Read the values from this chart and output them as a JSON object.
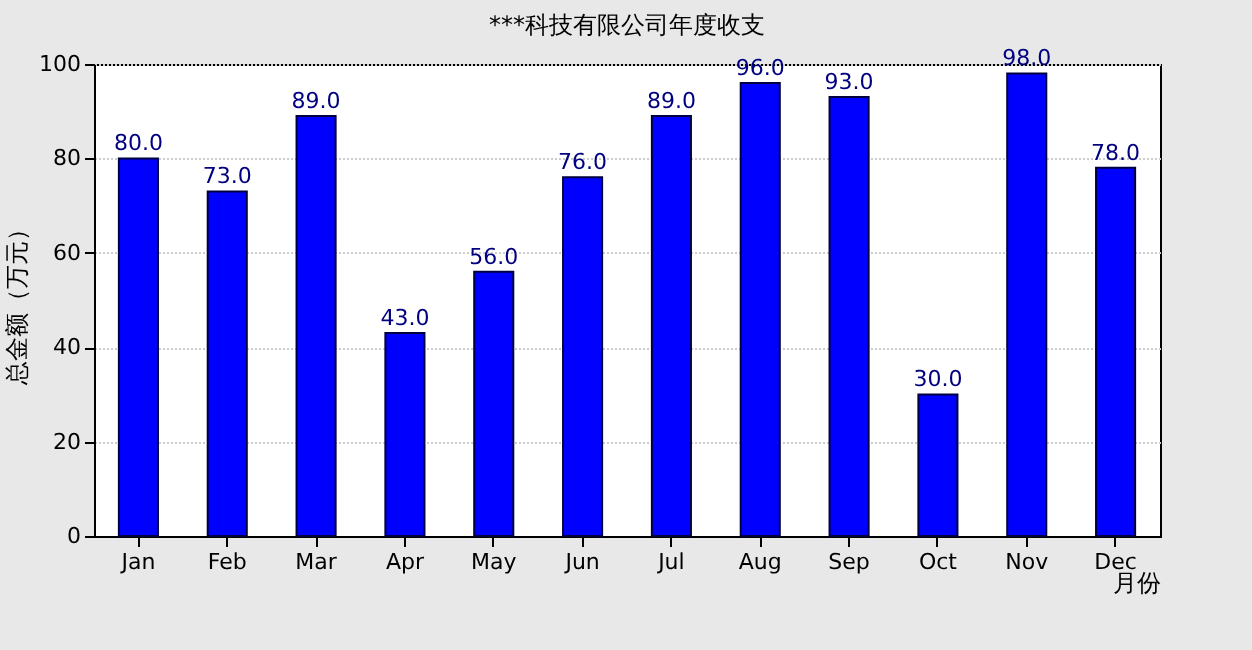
{
  "chart_data": {
    "type": "bar",
    "title": "***科技有限公司年度收支",
    "xlabel": "月份",
    "ylabel": "总金额（万元）",
    "categories": [
      "Jan",
      "Feb",
      "Mar",
      "Apr",
      "May",
      "Jun",
      "Jul",
      "Aug",
      "Sep",
      "Oct",
      "Nov",
      "Dec"
    ],
    "values": [
      80,
      73,
      89,
      43,
      56,
      76,
      89,
      96,
      93,
      30,
      98,
      78
    ],
    "value_labels": [
      "80.0",
      "73.0",
      "89.0",
      "43.0",
      "56.0",
      "76.0",
      "89.0",
      "96.0",
      "93.0",
      "30.0",
      "98.0",
      "78.0"
    ],
    "color": "#0000ff",
    "ylim": [
      0,
      100
    ],
    "yticks": [
      0,
      20,
      40,
      60,
      80,
      100
    ],
    "grid": "y"
  }
}
